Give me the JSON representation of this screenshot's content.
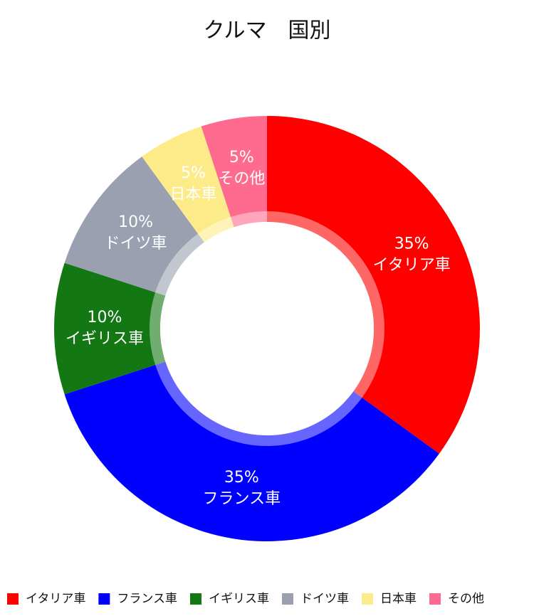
{
  "chart_data": {
    "type": "donut",
    "title": "クルマ　国別",
    "categories": [
      "イタリア車",
      "フランス車",
      "イギリス車",
      "ドイツ車",
      "日本車",
      "その他"
    ],
    "values": [
      35,
      35,
      10,
      10,
      5,
      5
    ],
    "value_labels": [
      "35%",
      "35%",
      "10%",
      "10%",
      "5%",
      "5%"
    ],
    "colors": [
      "#ff0000",
      "#0000ff",
      "#137713",
      "#9aa0b0",
      "#fdeb8a",
      "#ff6b8f"
    ],
    "legend": "bottom"
  }
}
